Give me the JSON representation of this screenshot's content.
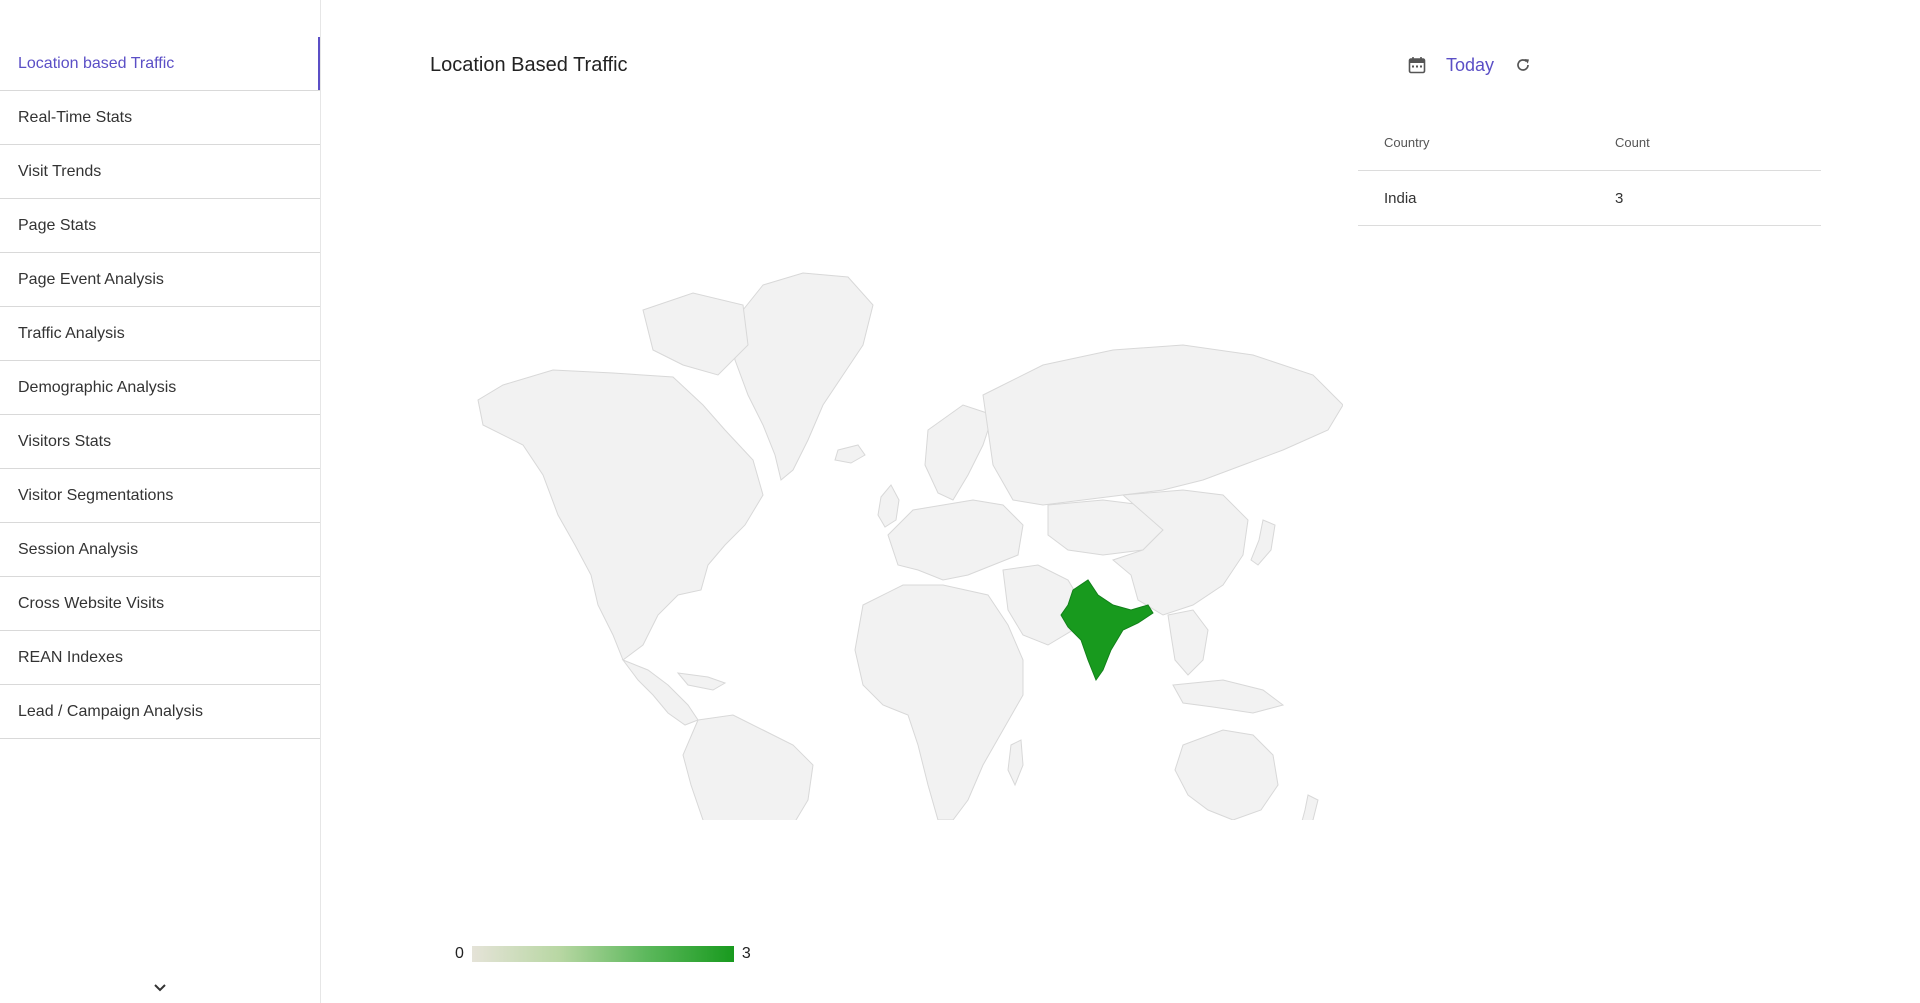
{
  "sidebar": {
    "items": [
      {
        "label": "Location based Traffic",
        "active": true
      },
      {
        "label": "Real-Time Stats",
        "active": false
      },
      {
        "label": "Visit Trends",
        "active": false
      },
      {
        "label": "Page Stats",
        "active": false
      },
      {
        "label": "Page Event Analysis",
        "active": false
      },
      {
        "label": "Traffic Analysis",
        "active": false
      },
      {
        "label": "Demographic Analysis",
        "active": false
      },
      {
        "label": "Visitors Stats",
        "active": false
      },
      {
        "label": "Visitor Segmentations",
        "active": false
      },
      {
        "label": "Session Analysis",
        "active": false
      },
      {
        "label": "Cross Website Visits",
        "active": false
      },
      {
        "label": "REAN Indexes",
        "active": false
      },
      {
        "label": "Lead / Campaign Analysis",
        "active": false
      }
    ],
    "expand_icon": "chevron-down-icon"
  },
  "header": {
    "title": "Location Based Traffic",
    "date_range_label": "Today",
    "calendar_icon": "calendar-icon",
    "refresh_icon": "refresh-icon"
  },
  "table": {
    "columns": [
      "Country",
      "Count"
    ],
    "rows": [
      {
        "country": "India",
        "count": "3"
      }
    ]
  },
  "map": {
    "highlighted_country": "India",
    "highlight_color": "#189a1e",
    "base_color": "#f2f2f2",
    "border_color": "#d8d8d8"
  },
  "legend": {
    "min": "0",
    "max": "3",
    "min_color": "#e5e3d8",
    "max_color": "#189a1e"
  },
  "colors": {
    "accent": "#5b4fc6"
  }
}
